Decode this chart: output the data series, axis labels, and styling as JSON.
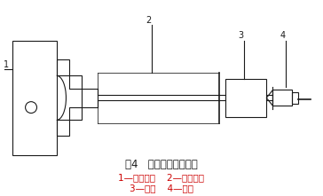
{
  "title": "图4   单动卡盘装夹示意",
  "legend_line1": "1—单动卡盘    2—加长夹爪",
  "legend_line2": "3—工件    4—顶尖",
  "bg_color": "#ffffff",
  "line_color": "#1a1a1a",
  "red_color": "#cc0000",
  "label1": "1",
  "label2": "2",
  "label3": "3",
  "label4": "4",
  "fig_w": 3.64,
  "fig_h": 2.21,
  "dpi": 100
}
